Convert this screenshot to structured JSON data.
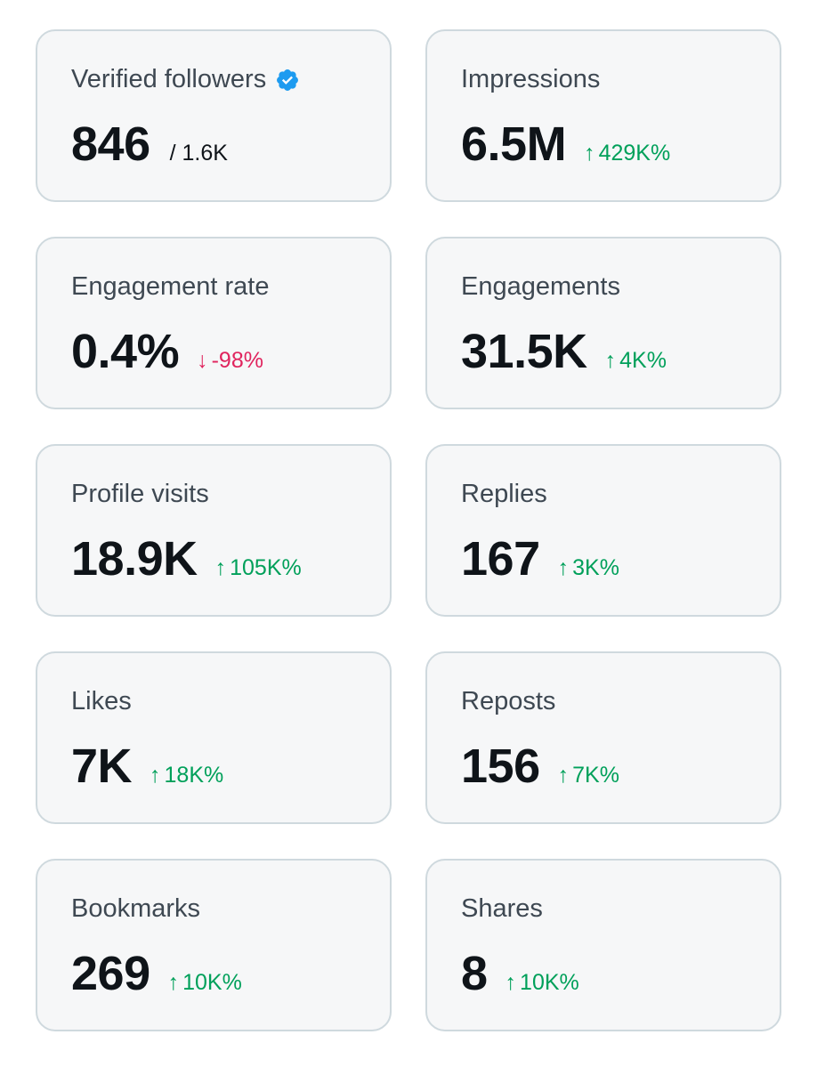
{
  "colors": {
    "card_bg": "#f6f7f8",
    "card_border": "#cfd9de",
    "positive": "#00a05a",
    "negative": "#e0245e",
    "verified_badge": "#1d9bf0"
  },
  "cards": [
    {
      "label": "Verified followers",
      "value": "846",
      "sub": "/ 1.6K",
      "verified_icon": "verified-check-icon"
    },
    {
      "label": "Impressions",
      "value": "6.5M",
      "delta": "429K%",
      "direction": "up"
    },
    {
      "label": "Engagement rate",
      "value": "0.4%",
      "delta": "-98%",
      "direction": "down"
    },
    {
      "label": "Engagements",
      "value": "31.5K",
      "delta": "4K%",
      "direction": "up"
    },
    {
      "label": "Profile visits",
      "value": "18.9K",
      "delta": "105K%",
      "direction": "up"
    },
    {
      "label": "Replies",
      "value": "167",
      "delta": "3K%",
      "direction": "up"
    },
    {
      "label": "Likes",
      "value": "7K",
      "delta": "18K%",
      "direction": "up"
    },
    {
      "label": "Reposts",
      "value": "156",
      "delta": "7K%",
      "direction": "up"
    },
    {
      "label": "Bookmarks",
      "value": "269",
      "delta": "10K%",
      "direction": "up"
    },
    {
      "label": "Shares",
      "value": "8",
      "delta": "10K%",
      "direction": "up"
    }
  ],
  "arrows": {
    "up": "↑",
    "down": "↓"
  }
}
